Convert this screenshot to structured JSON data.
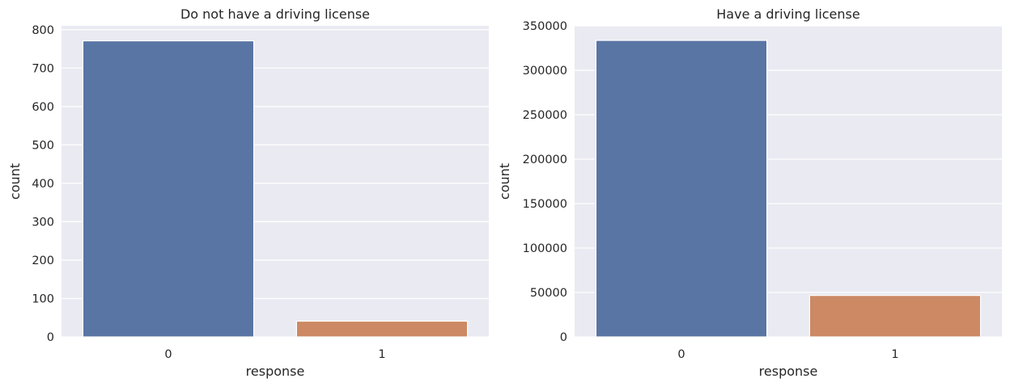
{
  "chart_data": [
    {
      "type": "bar",
      "title": "Do not have a driving license",
      "xlabel": "response",
      "ylabel": "count",
      "categories": [
        "0",
        "1"
      ],
      "values": [
        771,
        41
      ],
      "ylim": [
        0,
        810
      ],
      "yticks": [
        0,
        100,
        200,
        300,
        400,
        500,
        600,
        700,
        800
      ],
      "bar_colors": [
        "#5975a4",
        "#cc8963"
      ],
      "grid": true,
      "background": "#eaeaf2"
    },
    {
      "type": "bar",
      "title": "Have a driving license",
      "xlabel": "response",
      "ylabel": "count",
      "categories": [
        "0",
        "1"
      ],
      "values": [
        333628,
        46669
      ],
      "ylim": [
        0,
        350000
      ],
      "yticks": [
        0,
        50000,
        100000,
        150000,
        200000,
        250000,
        300000,
        350000
      ],
      "bar_colors": [
        "#5975a4",
        "#cc8963"
      ],
      "grid": true,
      "background": "#eaeaf2"
    }
  ]
}
